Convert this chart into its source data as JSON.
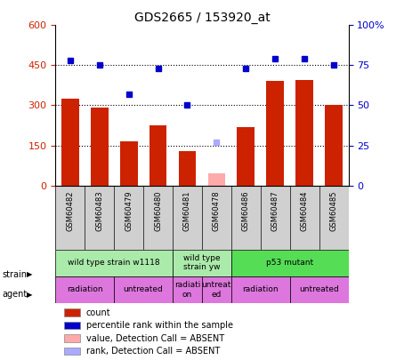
{
  "title": "GDS2665 / 153920_at",
  "samples": [
    "GSM60482",
    "GSM60483",
    "GSM60479",
    "GSM60480",
    "GSM60481",
    "GSM60478",
    "GSM60486",
    "GSM60487",
    "GSM60484",
    "GSM60485"
  ],
  "bar_values": [
    325,
    290,
    165,
    225,
    130,
    45,
    220,
    390,
    395,
    300
  ],
  "bar_colors": [
    "#cc2200",
    "#cc2200",
    "#cc2200",
    "#cc2200",
    "#cc2200",
    "#ffaaaa",
    "#cc2200",
    "#cc2200",
    "#cc2200",
    "#cc2200"
  ],
  "rank_values": [
    78,
    75,
    57,
    73,
    50,
    27,
    73,
    79,
    79,
    75
  ],
  "rank_colors": [
    "#0000cc",
    "#0000cc",
    "#0000cc",
    "#0000cc",
    "#0000cc",
    "#aaaaff",
    "#0000cc",
    "#0000cc",
    "#0000cc",
    "#0000cc"
  ],
  "ylim_left": [
    0,
    600
  ],
  "ylim_right": [
    0,
    100
  ],
  "yticks_left": [
    0,
    150,
    300,
    450,
    600
  ],
  "yticks_right": [
    0,
    25,
    50,
    75,
    100
  ],
  "ytick_labels_left": [
    "0",
    "150",
    "300",
    "450",
    "600"
  ],
  "ytick_labels_right": [
    "0",
    "25",
    "50",
    "75",
    "100%"
  ],
  "hlines": [
    150,
    300,
    450
  ],
  "strain_groups": [
    {
      "label": "wild type strain w1118",
      "start": 0,
      "end": 4,
      "color": "#aaeaaa"
    },
    {
      "label": "wild type\nstrain yw",
      "start": 4,
      "end": 6,
      "color": "#aaeaaa"
    },
    {
      "label": "p53 mutant",
      "start": 6,
      "end": 10,
      "color": "#55dd55"
    }
  ],
  "agent_groups": [
    {
      "label": "radiation",
      "start": 0,
      "end": 2,
      "color": "#dd77dd"
    },
    {
      "label": "untreated",
      "start": 2,
      "end": 4,
      "color": "#dd77dd"
    },
    {
      "label": "radiati-\non",
      "start": 4,
      "end": 5,
      "color": "#dd77dd"
    },
    {
      "label": "untreat-\ned",
      "start": 5,
      "end": 6,
      "color": "#dd77dd"
    },
    {
      "label": "radiation",
      "start": 6,
      "end": 8,
      "color": "#dd77dd"
    },
    {
      "label": "untreated",
      "start": 8,
      "end": 10,
      "color": "#dd77dd"
    }
  ],
  "left_label_color": "#cc2200",
  "right_label_color": "#0000cc",
  "plot_bg": "#ffffff",
  "tick_area_bg": "#d0d0d0",
  "legend_colors": [
    "#cc2200",
    "#0000cc",
    "#ffaaaa",
    "#aaaaff"
  ],
  "legend_labels": [
    "count",
    "percentile rank within the sample",
    "value, Detection Call = ABSENT",
    "rank, Detection Call = ABSENT"
  ]
}
